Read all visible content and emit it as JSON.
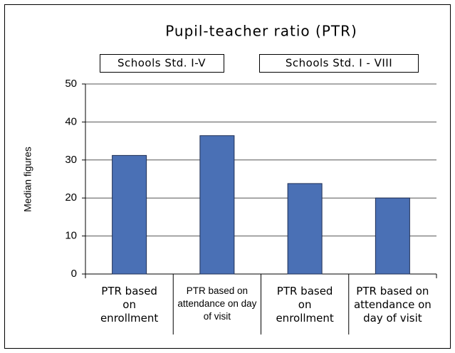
{
  "chart_data": {
    "type": "bar",
    "title": "Pupil-teacher ratio (PTR)",
    "annotations": [
      "Schools Std. I-V",
      "Schools Std. I - VIII"
    ],
    "ylabel": "Median figures",
    "categories": [
      "PTR based on enrollment",
      "PTR based on attendance on day of visit",
      "PTR based on enrollment",
      "PTR based on attendance on day of visit"
    ],
    "values": [
      31.2,
      36.4,
      23.8,
      20.0
    ],
    "color": "#4a70b5",
    "ylim": [
      0,
      50
    ],
    "yticks": [
      0,
      10,
      20,
      30,
      40,
      50
    ],
    "grid": true
  }
}
